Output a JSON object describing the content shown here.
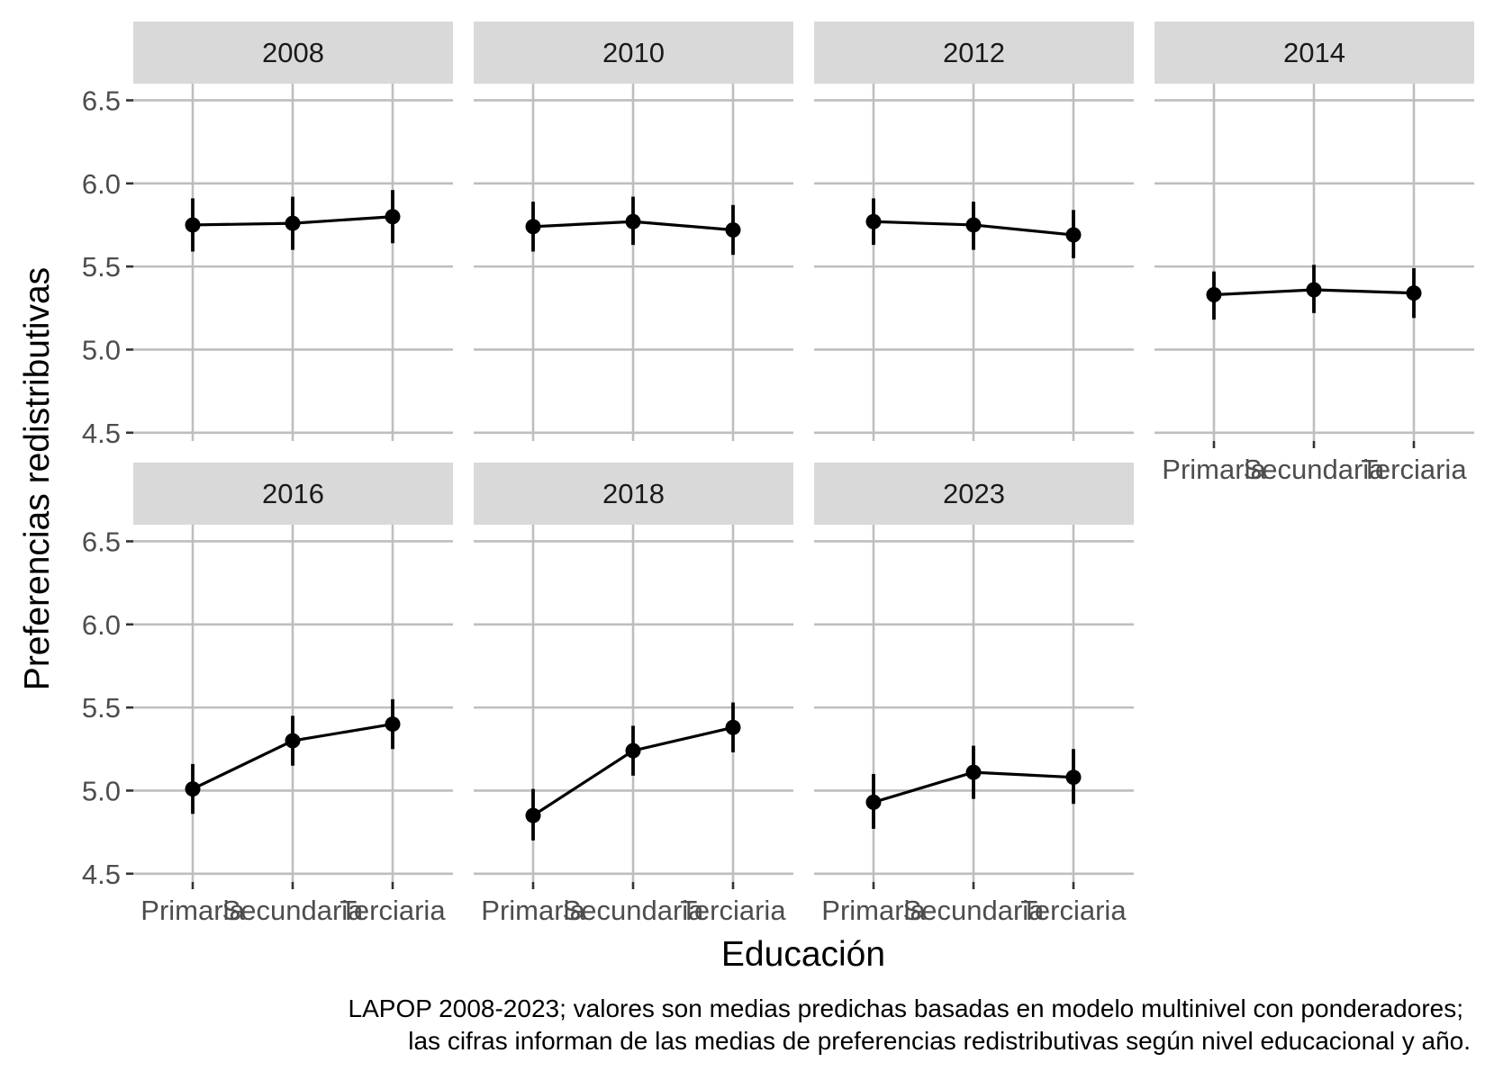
{
  "chart_data": {
    "type": "line",
    "xlabel": "Educación",
    "ylabel": "Preferencias redistributivas",
    "categories": [
      "Primaria",
      "Secundaria",
      "Terciaria"
    ],
    "yticks": [
      "4.5",
      "5.0",
      "5.5",
      "6.0",
      "6.5"
    ],
    "ylim": [
      4.45,
      6.6
    ],
    "caption_lines": [
      "LAPOP 2008-2023; valores son medias predichas basadas en modelo multinivel con ponderadores;",
      "las cifras informan de las medias de preferencias redistributivas según nivel educacional y año."
    ],
    "panels": [
      {
        "year": "2008",
        "values": [
          5.75,
          5.76,
          5.8
        ],
        "lower": [
          5.59,
          5.6,
          5.64
        ],
        "upper": [
          5.91,
          5.92,
          5.96
        ]
      },
      {
        "year": "2010",
        "values": [
          5.74,
          5.77,
          5.72
        ],
        "lower": [
          5.59,
          5.63,
          5.57
        ],
        "upper": [
          5.89,
          5.92,
          5.87
        ]
      },
      {
        "year": "2012",
        "values": [
          5.77,
          5.75,
          5.69
        ],
        "lower": [
          5.63,
          5.6,
          5.55
        ],
        "upper": [
          5.91,
          5.89,
          5.84
        ]
      },
      {
        "year": "2014",
        "values": [
          5.33,
          5.36,
          5.34
        ],
        "lower": [
          5.18,
          5.22,
          5.19
        ],
        "upper": [
          5.47,
          5.51,
          5.49
        ]
      },
      {
        "year": "2016",
        "values": [
          5.01,
          5.3,
          5.4
        ],
        "lower": [
          4.86,
          5.15,
          5.25
        ],
        "upper": [
          5.16,
          5.45,
          5.55
        ]
      },
      {
        "year": "2018",
        "values": [
          4.85,
          5.24,
          5.38
        ],
        "lower": [
          4.7,
          5.09,
          5.23
        ],
        "upper": [
          5.01,
          5.39,
          5.53
        ]
      },
      {
        "year": "2023",
        "values": [
          4.93,
          5.11,
          5.08
        ],
        "lower": [
          4.77,
          4.95,
          4.92
        ],
        "upper": [
          5.1,
          5.27,
          5.25
        ]
      }
    ]
  }
}
